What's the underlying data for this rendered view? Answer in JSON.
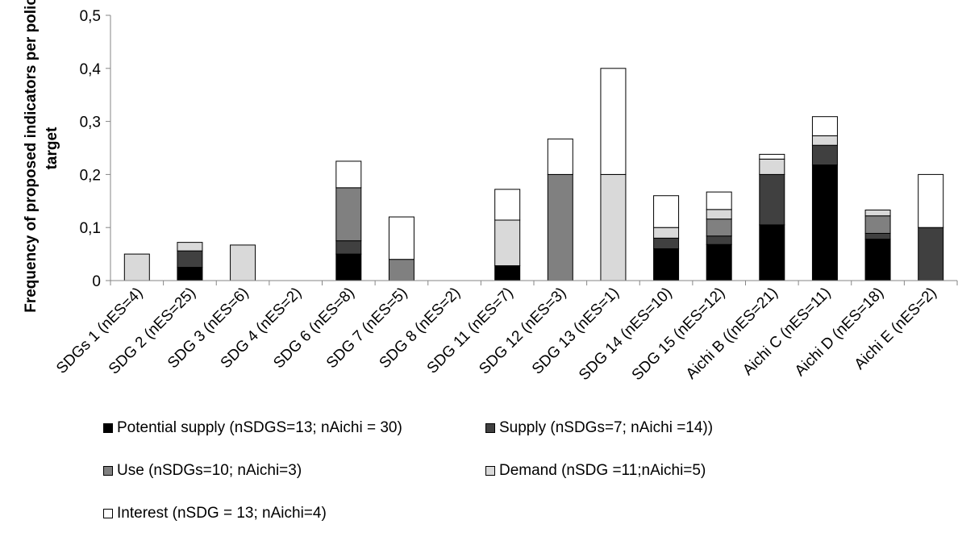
{
  "chart_data": {
    "type": "bar",
    "stacked": true,
    "title": "",
    "xlabel": "",
    "ylabel": "Frequency of proposed indicators per policy target",
    "ylim": [
      0,
      0.5
    ],
    "yticks": [
      "0",
      "0,1",
      "0,2",
      "0,3",
      "0,4",
      "0,5"
    ],
    "ytick_values": [
      0,
      0.1,
      0.2,
      0.3,
      0.4,
      0.5
    ],
    "grid": false,
    "legend_position": "bottom",
    "categories": [
      "SDGs 1 (nES=4)",
      "SDG 2 (nES=25)",
      "SDG 3 (nES=6)",
      "SDG 4 (nES=2)",
      "SDG 6 (nES=8)",
      "SDG 7 (nES=5)",
      "SDG 8 (nES=2)",
      "SDG 11 (nES=7)",
      "SDG 12 (nES=3)",
      "SDG 13 (nES=1)",
      "SDG 14 (nES=10)",
      "SDG 15 (nES=12)",
      "Aichi B ((nES=21)",
      "Aichi C (nES=11)",
      "Aichi D (nES=18)",
      "Aichi E (nES=2)"
    ],
    "series": [
      {
        "name": "Potential supply (nSDGS=13; nAichi = 30)",
        "color": "#000000",
        "values": [
          0,
          0.025,
          0,
          0,
          0.05,
          0,
          0,
          0.028,
          0,
          0,
          0.06,
          0.068,
          0.105,
          0.218,
          0.078,
          0
        ]
      },
      {
        "name": "Supply (nSDGs=7; nAichi =14))",
        "color": "#404040",
        "values": [
          0,
          0.031,
          0,
          0,
          0.025,
          0,
          0,
          0,
          0,
          0,
          0.02,
          0.016,
          0.095,
          0.037,
          0.011,
          0.1
        ]
      },
      {
        "name": "Use (nSDGs=10; nAichi=3)",
        "color": "#808080",
        "values": [
          0,
          0,
          0,
          0,
          0.1,
          0.04,
          0,
          0,
          0.2,
          0,
          0,
          0.032,
          0,
          0,
          0.033,
          0
        ]
      },
      {
        "name": "Demand (nSDG =11;nAichi=5)",
        "color": "#d9d9d9",
        "values": [
          0.05,
          0.016,
          0.067,
          0,
          0,
          0,
          0,
          0.086,
          0,
          0.2,
          0.02,
          0.018,
          0.029,
          0.018,
          0.011,
          0
        ]
      },
      {
        "name": "Interest (nSDG = 13; nAichi=4)",
        "color": "#ffffff",
        "values": [
          0,
          0,
          0,
          0,
          0.05,
          0.08,
          0,
          0.058,
          0.067,
          0.2,
          0.06,
          0.033,
          0.009,
          0.036,
          0,
          0.1
        ]
      }
    ]
  }
}
